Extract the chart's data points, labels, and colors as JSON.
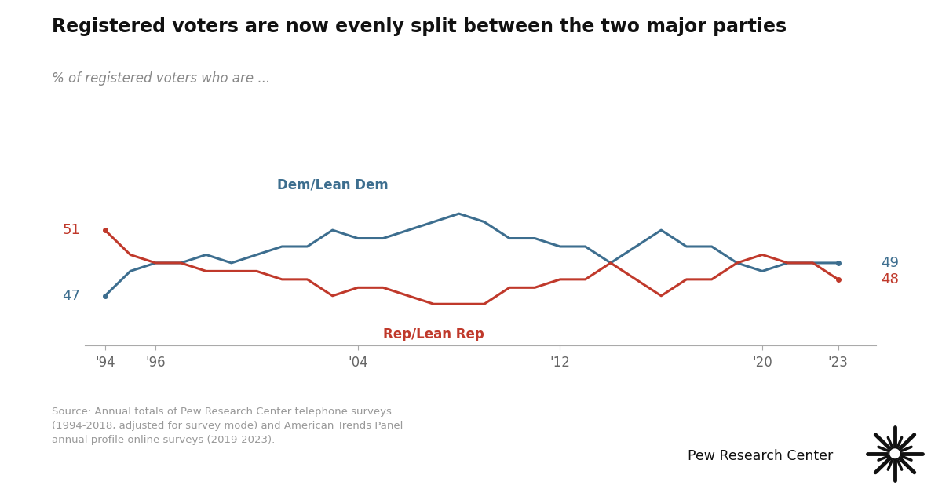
{
  "title": "Registered voters are now evenly split between the two major parties",
  "subtitle": "% of registered voters who are ...",
  "dem_label": "Dem/Lean Dem",
  "rep_label": "Rep/Lean Rep",
  "dem_color": "#3d6e8f",
  "rep_color": "#c0392b",
  "years": [
    1994,
    1995,
    1996,
    1997,
    1998,
    1999,
    2000,
    2001,
    2002,
    2003,
    2004,
    2005,
    2006,
    2007,
    2008,
    2009,
    2010,
    2011,
    2012,
    2013,
    2014,
    2015,
    2016,
    2017,
    2018,
    2019,
    2020,
    2021,
    2022,
    2023
  ],
  "dem_values": [
    47,
    48.5,
    49,
    49,
    49.5,
    49,
    49.5,
    50,
    50,
    51,
    50.5,
    50.5,
    51,
    51.5,
    52,
    51.5,
    50.5,
    50.5,
    50,
    50,
    49,
    50,
    51,
    50,
    50,
    49,
    48.5,
    49,
    49,
    49
  ],
  "rep_values": [
    51,
    49.5,
    49,
    49,
    48.5,
    48.5,
    48.5,
    48,
    48,
    47,
    47.5,
    47.5,
    47,
    46.5,
    46.5,
    46.5,
    47.5,
    47.5,
    48,
    48,
    49,
    48,
    47,
    48,
    48,
    49,
    49.5,
    49,
    49,
    48
  ],
  "x_tick_labels": [
    "'94",
    "'96",
    "'04",
    "'12",
    "'20",
    "'23"
  ],
  "x_tick_positions": [
    1994,
    1996,
    2004,
    2012,
    2020,
    2023
  ],
  "dem_start_label": "47",
  "rep_start_label": "51",
  "dem_end_label": "49",
  "rep_end_label": "48",
  "source_text": "Source: Annual totals of Pew Research Center telephone surveys\n(1994-2018, adjusted for survey mode) and American Trends Panel\nannual profile online surveys (2019-2023).",
  "background_color": "#ffffff",
  "line_width": 2.2,
  "ylim_min": 44.0,
  "ylim_max": 54.5
}
